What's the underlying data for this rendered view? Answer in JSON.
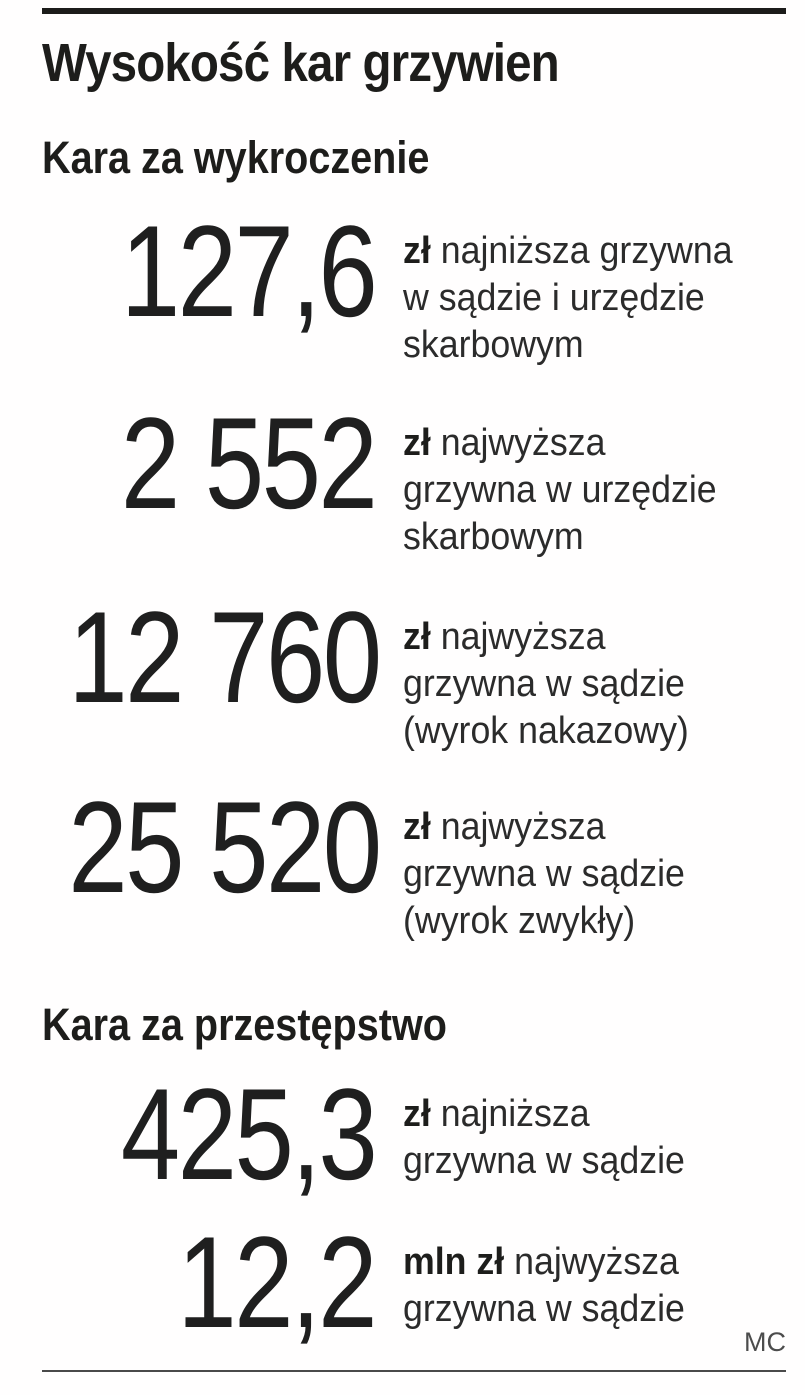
{
  "title": "Wysokość kar grzywien",
  "credit": "MC",
  "colors": {
    "ink": "#1d1d1b",
    "text": "#2b2b2b",
    "muted": "#4c4c4c"
  },
  "sections": [
    {
      "heading": "Kara za wykroczenie",
      "items": [
        {
          "number": "127,6",
          "unit": "zł",
          "desc": " najniższa grzywna\nw sądzie i urzędzie\nskarbowym"
        },
        {
          "number": "2 552",
          "unit": "zł",
          "desc": " najwyższa\ngrzywna w urzędzie\nskarbowym"
        },
        {
          "number": "12 760",
          "unit": "zł",
          "desc": " najwyższa\ngrzywna w sądzie\n(wyrok nakazowy)"
        },
        {
          "number": "25 520",
          "unit": "zł",
          "desc": " najwyższa\ngrzywna w sądzie\n(wyrok zwykły)"
        }
      ]
    },
    {
      "heading": "Kara za przestępstwo",
      "items": [
        {
          "number": "425,3",
          "unit": "zł",
          "desc": " najniższa\ngrzywna w sądzie"
        },
        {
          "number": "12,2",
          "unit": "mln zł",
          "desc": " najwyższa\ngrzywna w sądzie"
        }
      ]
    }
  ],
  "chart_data": {
    "type": "table",
    "title": "Wysokość kar grzywien",
    "credit": "MC",
    "sections": [
      {
        "label": "Kara za wykroczenie",
        "entries": [
          {
            "value": 127.6,
            "unit": "zł",
            "description": "najniższa grzywna w sądzie i urzędzie skarbowym"
          },
          {
            "value": 2552,
            "unit": "zł",
            "description": "najwyższa grzywna w urzędzie skarbowym"
          },
          {
            "value": 12760,
            "unit": "zł",
            "description": "najwyższa grzywna w sądzie (wyrok nakazowy)"
          },
          {
            "value": 25520,
            "unit": "zł",
            "description": "najwyższa grzywna w sądzie (wyrok zwykły)"
          }
        ]
      },
      {
        "label": "Kara za przestępstwo",
        "entries": [
          {
            "value": 425.3,
            "unit": "zł",
            "description": "najniższa grzywna w sądzie"
          },
          {
            "value": 12200000,
            "unit": "zł",
            "display": "12,2 mln zł",
            "description": "najwyższa grzywna w sądzie"
          }
        ]
      }
    ]
  }
}
